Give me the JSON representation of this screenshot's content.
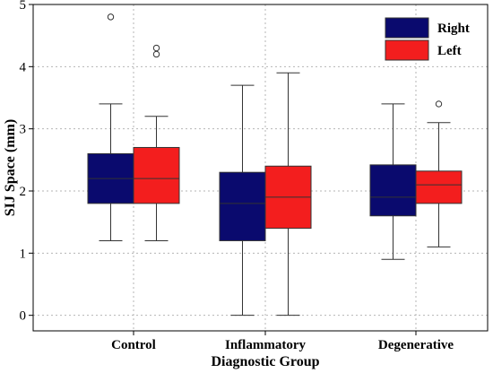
{
  "chart_data": {
    "type": "box",
    "xlabel": "Diagnostic Group",
    "ylabel": "SIJ Space (mm)",
    "ylim": [
      -0.25,
      5.0
    ],
    "yticks": [
      "0",
      "1",
      "2",
      "3",
      "4",
      "5"
    ],
    "grid": true,
    "legend_position": "top-right",
    "categories": [
      "Control",
      "Inflammatory",
      "Degenerative"
    ],
    "series": [
      {
        "name": "Right",
        "color": "#0a0a6e",
        "boxes": [
          {
            "whisker_low": 1.2,
            "q1": 1.8,
            "median": 2.2,
            "q3": 2.6,
            "whisker_high": 3.4,
            "outliers": [
              4.8
            ]
          },
          {
            "whisker_low": 0.0,
            "q1": 1.2,
            "median": 1.8,
            "q3": 2.3,
            "whisker_high": 3.7,
            "outliers": []
          },
          {
            "whisker_low": 0.9,
            "q1": 1.6,
            "median": 1.9,
            "q3": 2.42,
            "whisker_high": 3.4,
            "outliers": []
          }
        ]
      },
      {
        "name": "Left",
        "color": "#f31e1e",
        "boxes": [
          {
            "whisker_low": 1.2,
            "q1": 1.8,
            "median": 2.2,
            "q3": 2.7,
            "whisker_high": 3.2,
            "outliers": [
              4.2,
              4.3
            ]
          },
          {
            "whisker_low": 0.0,
            "q1": 1.4,
            "median": 1.9,
            "q3": 2.4,
            "whisker_high": 3.9,
            "outliers": []
          },
          {
            "whisker_low": 1.1,
            "q1": 1.8,
            "median": 2.1,
            "q3": 2.32,
            "whisker_high": 3.1,
            "outliers": [
              3.4
            ]
          }
        ]
      }
    ]
  }
}
